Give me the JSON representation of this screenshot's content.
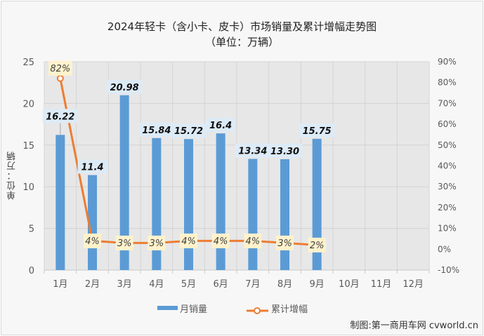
{
  "chart_data": {
    "type": "bar+line",
    "title": "2024年轻卡（含小卡、皮卡）市场销量及累计增幅走势图",
    "subtitle": "（单位：万辆）",
    "xlabel": "",
    "ylabel": "单位：万辆",
    "y2label": "",
    "categories": [
      "1月",
      "2月",
      "3月",
      "4月",
      "5月",
      "6月",
      "7月",
      "8月",
      "9月",
      "10月",
      "11月",
      "12月"
    ],
    "series": [
      {
        "name": "月销量",
        "type": "bar",
        "axis": "left",
        "color": "#5b9bd5",
        "values": [
          16.22,
          11.4,
          20.98,
          15.84,
          15.72,
          16.4,
          13.34,
          13.3,
          15.75,
          null,
          null,
          null
        ],
        "labels": [
          "16.22",
          "11.4",
          "20.98",
          "15.84",
          "15.72",
          "16.4",
          "13.34",
          "13.30",
          "15.75"
        ]
      },
      {
        "name": "累计增幅",
        "type": "line",
        "axis": "right",
        "color": "#ed7d31",
        "values": [
          82,
          4,
          3,
          3,
          4,
          4,
          4,
          3,
          2,
          null,
          null,
          null
        ],
        "labels": [
          "82%",
          "4%",
          "3%",
          "3%",
          "4%",
          "4%",
          "4%",
          "3%",
          "2%"
        ]
      }
    ],
    "ylim": [
      0,
      25
    ],
    "yticks": [
      "0",
      "5",
      "10",
      "15",
      "20",
      "25"
    ],
    "y2lim": [
      -10,
      90
    ],
    "y2ticks": [
      "-10%",
      "0%",
      "10%",
      "20%",
      "30%",
      "40%",
      "50%",
      "60%",
      "70%",
      "80%",
      "90%"
    ],
    "grid": true,
    "legend_position": "bottom"
  },
  "header": {
    "title": "2024年轻卡（含小卡、皮卡）市场销量及累计增幅走势图",
    "subtitle": "（单位：万辆）"
  },
  "axis": {
    "ylabel": "单位：万辆"
  },
  "legend": {
    "bar_label": "月销量",
    "line_label": "累计增幅"
  },
  "footer": {
    "credit": "制图:第一商用车网 cvworld.cn"
  },
  "colors": {
    "bar": "#5b9bd5",
    "line": "#ed7d31",
    "plot_bg": "#e7e7e7",
    "bar_label_bg": "#ddebf7",
    "line_label_bg": "#fff2cc"
  }
}
